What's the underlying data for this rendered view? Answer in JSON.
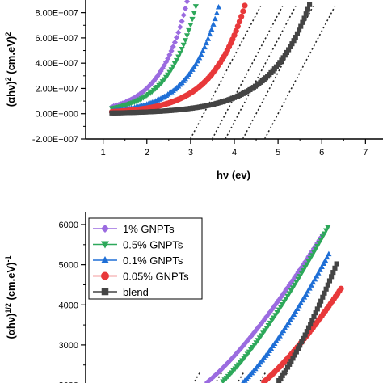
{
  "chart_data": [
    {
      "type": "scatter",
      "xlabel": "hν (ev)",
      "ylabel": "(αhν)² (cm.eV)²",
      "xlim": [
        0.6,
        7.4
      ],
      "ylim": [
        -20000000.0,
        90000000.0
      ],
      "x_ticks": [
        "1",
        "2",
        "3",
        "4",
        "5",
        "6",
        "7"
      ],
      "y_ticks": [
        "-2.00E+007",
        "0.00E+000",
        "2.00E+007",
        "4.00E+007",
        "6.00E+007",
        "8.00E+007"
      ],
      "series": [
        {
          "name": "1% GNPTs",
          "color": "#9b6be0",
          "marker": "diamond",
          "a": 800000.0,
          "b": 0.62,
          "x_end": 5.85
        },
        {
          "name": "0.5% GNPTs",
          "color": "#2da85a",
          "marker": "triangle-down",
          "a": 600000.0,
          "b": 0.63,
          "x_end": 6.1
        },
        {
          "name": "0.1% GNPTs",
          "color": "#1f6fd6",
          "marker": "triangle-up",
          "a": 400000.0,
          "b": 0.68,
          "x_end": 6.1
        },
        {
          "name": "0.05% GNPTs",
          "color": "#e8383a",
          "marker": "circle",
          "a": 300000.0,
          "b": 0.75,
          "x_end": 6.45
        },
        {
          "name": "blend",
          "color": "#444444",
          "marker": "square",
          "a": 150000.0,
          "b": 0.9,
          "x_end": 6.3
        }
      ],
      "tangent_intercepts": [
        3.3,
        3.8,
        4.1,
        4.5,
        5.0
      ]
    },
    {
      "type": "scatter",
      "xlabel": "",
      "ylabel": "(αhν)^(1/2) (cm.eV)^-1",
      "ylim": [
        1600,
        6400
      ],
      "y_ticks": [
        "2000",
        "3000",
        "4000",
        "5000",
        "6000"
      ],
      "legend": [
        {
          "name": "1% GNPTs",
          "color": "#9b6be0",
          "marker": "diamond"
        },
        {
          "name": "0.5% GNPTs",
          "color": "#2da85a",
          "marker": "triangle-down"
        },
        {
          "name": "0.1% GNPTs",
          "color": "#1f6fd6",
          "marker": "triangle-up"
        },
        {
          "name": "0.05% GNPTs",
          "color": "#e8383a",
          "marker": "circle"
        },
        {
          "name": "blend",
          "color": "#444444",
          "marker": "square"
        }
      ],
      "legend_position": "top-left"
    }
  ]
}
